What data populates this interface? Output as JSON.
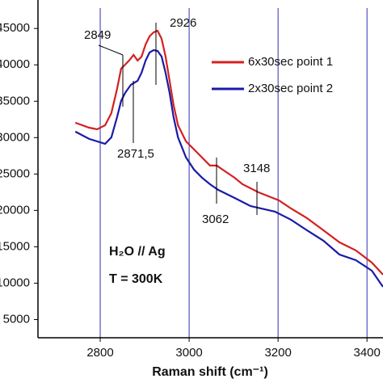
{
  "chart_data": {
    "type": "line",
    "x_label": "Raman shift  (cm⁻¹)",
    "xlim": [
      2660,
      3436
    ],
    "xticks": [
      2800,
      3000,
      3200,
      3400
    ],
    "ylim": [
      2500,
      47800
    ],
    "yticks": [
      5000,
      10000,
      15000,
      20000,
      25000,
      30000,
      35000,
      40000,
      45000
    ],
    "grid": true,
    "series": [
      {
        "name": "6x30sec point 1",
        "color": "#d42020",
        "x": [
          2744,
          2775,
          2793,
          2811,
          2825,
          2838,
          2847,
          2856,
          2865,
          2875,
          2884,
          2893,
          2902,
          2911,
          2920,
          2929,
          2938,
          2947,
          2956,
          2965,
          2975,
          2993,
          3011,
          3029,
          3047,
          3062,
          3075,
          3102,
          3120,
          3156,
          3202,
          3229,
          3265,
          3302,
          3338,
          3375,
          3411,
          3436
        ],
        "values": [
          32040,
          31370,
          31150,
          31700,
          33370,
          36700,
          39480,
          40030,
          40590,
          41360,
          40590,
          41140,
          42800,
          43920,
          44470,
          44690,
          43580,
          41140,
          37810,
          34480,
          31700,
          29480,
          28380,
          27270,
          26160,
          26160,
          25600,
          24490,
          23600,
          22490,
          21380,
          20270,
          18940,
          17270,
          15610,
          14500,
          12830,
          11170
        ]
      },
      {
        "name": "2x30sec point 2",
        "color": "#1a1aa8",
        "x": [
          2744,
          2775,
          2811,
          2825,
          2838,
          2847,
          2856,
          2869,
          2884,
          2893,
          2902,
          2911,
          2920,
          2929,
          2938,
          2947,
          2956,
          2965,
          2975,
          2993,
          3011,
          3029,
          3047,
          3065,
          3102,
          3138,
          3193,
          3229,
          3265,
          3302,
          3338,
          3375,
          3411,
          3436
        ],
        "values": [
          30820,
          29820,
          29150,
          30040,
          32820,
          35040,
          36150,
          37260,
          37810,
          38920,
          40590,
          41700,
          42030,
          41920,
          41140,
          38920,
          36150,
          32820,
          30040,
          27270,
          25600,
          24490,
          23600,
          22830,
          21720,
          20600,
          19830,
          18720,
          17270,
          15830,
          13940,
          13160,
          11720,
          9500
        ]
      }
    ],
    "annotations": [
      "2849",
      "2926",
      "2871,5",
      "3062",
      "3148",
      "H₂O // Ag",
      "T = 300K"
    ]
  }
}
